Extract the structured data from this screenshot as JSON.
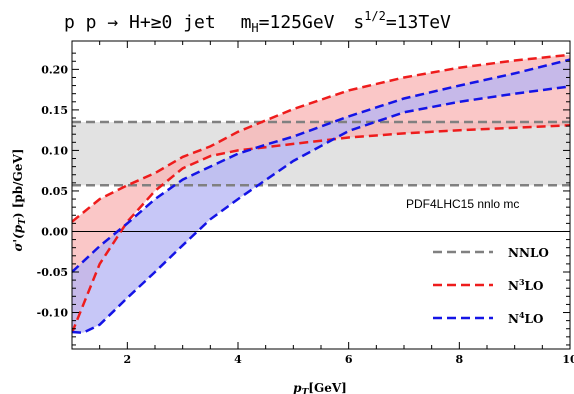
{
  "chart_data": {
    "type": "area",
    "title_parts": {
      "process": "p p → H+≥0 jet",
      "mass": "m",
      "mass_sub": "H",
      "mass_val": "=125GeV",
      "energy": "s",
      "energy_sup": "1/2",
      "energy_val": "=13TeV"
    },
    "xlabel": "p",
    "xlabel_sub": "T",
    "xlabel_unit": "[GeV]",
    "ylabel": "σ'(p",
    "ylabel_sub": "T",
    "ylabel_unit": ") [pb/GeV]",
    "xlim": [
      1,
      10
    ],
    "ylim": [
      -0.145,
      0.235
    ],
    "x_ticks": [
      2,
      4,
      6,
      8,
      10
    ],
    "x_tick_labels": [
      "2",
      "4",
      "6",
      "8",
      "10"
    ],
    "y_ticks": [
      -0.1,
      -0.05,
      0.0,
      0.05,
      0.1,
      0.15,
      0.2
    ],
    "y_tick_labels": [
      "-0.10",
      "-0.05",
      "0.00",
      "0.05",
      "0.10",
      "0.15",
      "0.20"
    ],
    "annotation": "PDF4LHC15 nnlo mc",
    "legend_position": "bottom-right",
    "series": [
      {
        "name": "NNLO",
        "color": "#808080",
        "fill": "#e2e2e2",
        "upper": 0.135,
        "lower": 0.057
      },
      {
        "name": "N³LO",
        "legend_base": "N",
        "legend_sup": "3",
        "legend_tail": "LO",
        "color": "#ee1c1c",
        "fill": "#f8b4b4",
        "upper": {
          "x": [
            1,
            1.5,
            2,
            2.5,
            3,
            3.5,
            4,
            5,
            6,
            7,
            8,
            9,
            10
          ],
          "y": [
            0.012,
            0.04,
            0.057,
            0.072,
            0.092,
            0.105,
            0.123,
            0.151,
            0.174,
            0.19,
            0.202,
            0.211,
            0.218
          ]
        },
        "lower": {
          "x": [
            1,
            1.5,
            2,
            2.5,
            3,
            3.5,
            4,
            4.5,
            5,
            6,
            7,
            8,
            9,
            10
          ],
          "y": [
            -0.125,
            -0.04,
            0.012,
            0.05,
            0.078,
            0.093,
            0.1,
            0.104,
            0.108,
            0.116,
            0.121,
            0.125,
            0.128,
            0.131
          ]
        }
      },
      {
        "name": "N⁴LO",
        "legend_base": "N",
        "legend_sup": "4",
        "legend_tail": "LO",
        "color": "#1414e6",
        "fill": "#b4b4f4",
        "upper": {
          "x": [
            1,
            1.5,
            2,
            2.5,
            3,
            3.5,
            4,
            4.5,
            5,
            6,
            7,
            8,
            9,
            10
          ],
          "y": [
            -0.05,
            -0.018,
            0.01,
            0.04,
            0.064,
            0.08,
            0.096,
            0.107,
            0.117,
            0.142,
            0.164,
            0.18,
            0.195,
            0.212
          ]
        },
        "lower": {
          "x": [
            1,
            1.2,
            1.5,
            2,
            2.5,
            3,
            3.5,
            4,
            5,
            6,
            7,
            8,
            9,
            10
          ],
          "y": [
            -0.124,
            -0.125,
            -0.115,
            -0.082,
            -0.05,
            -0.017,
            0.015,
            0.04,
            0.087,
            0.124,
            0.147,
            0.16,
            0.17,
            0.179
          ]
        }
      }
    ]
  }
}
